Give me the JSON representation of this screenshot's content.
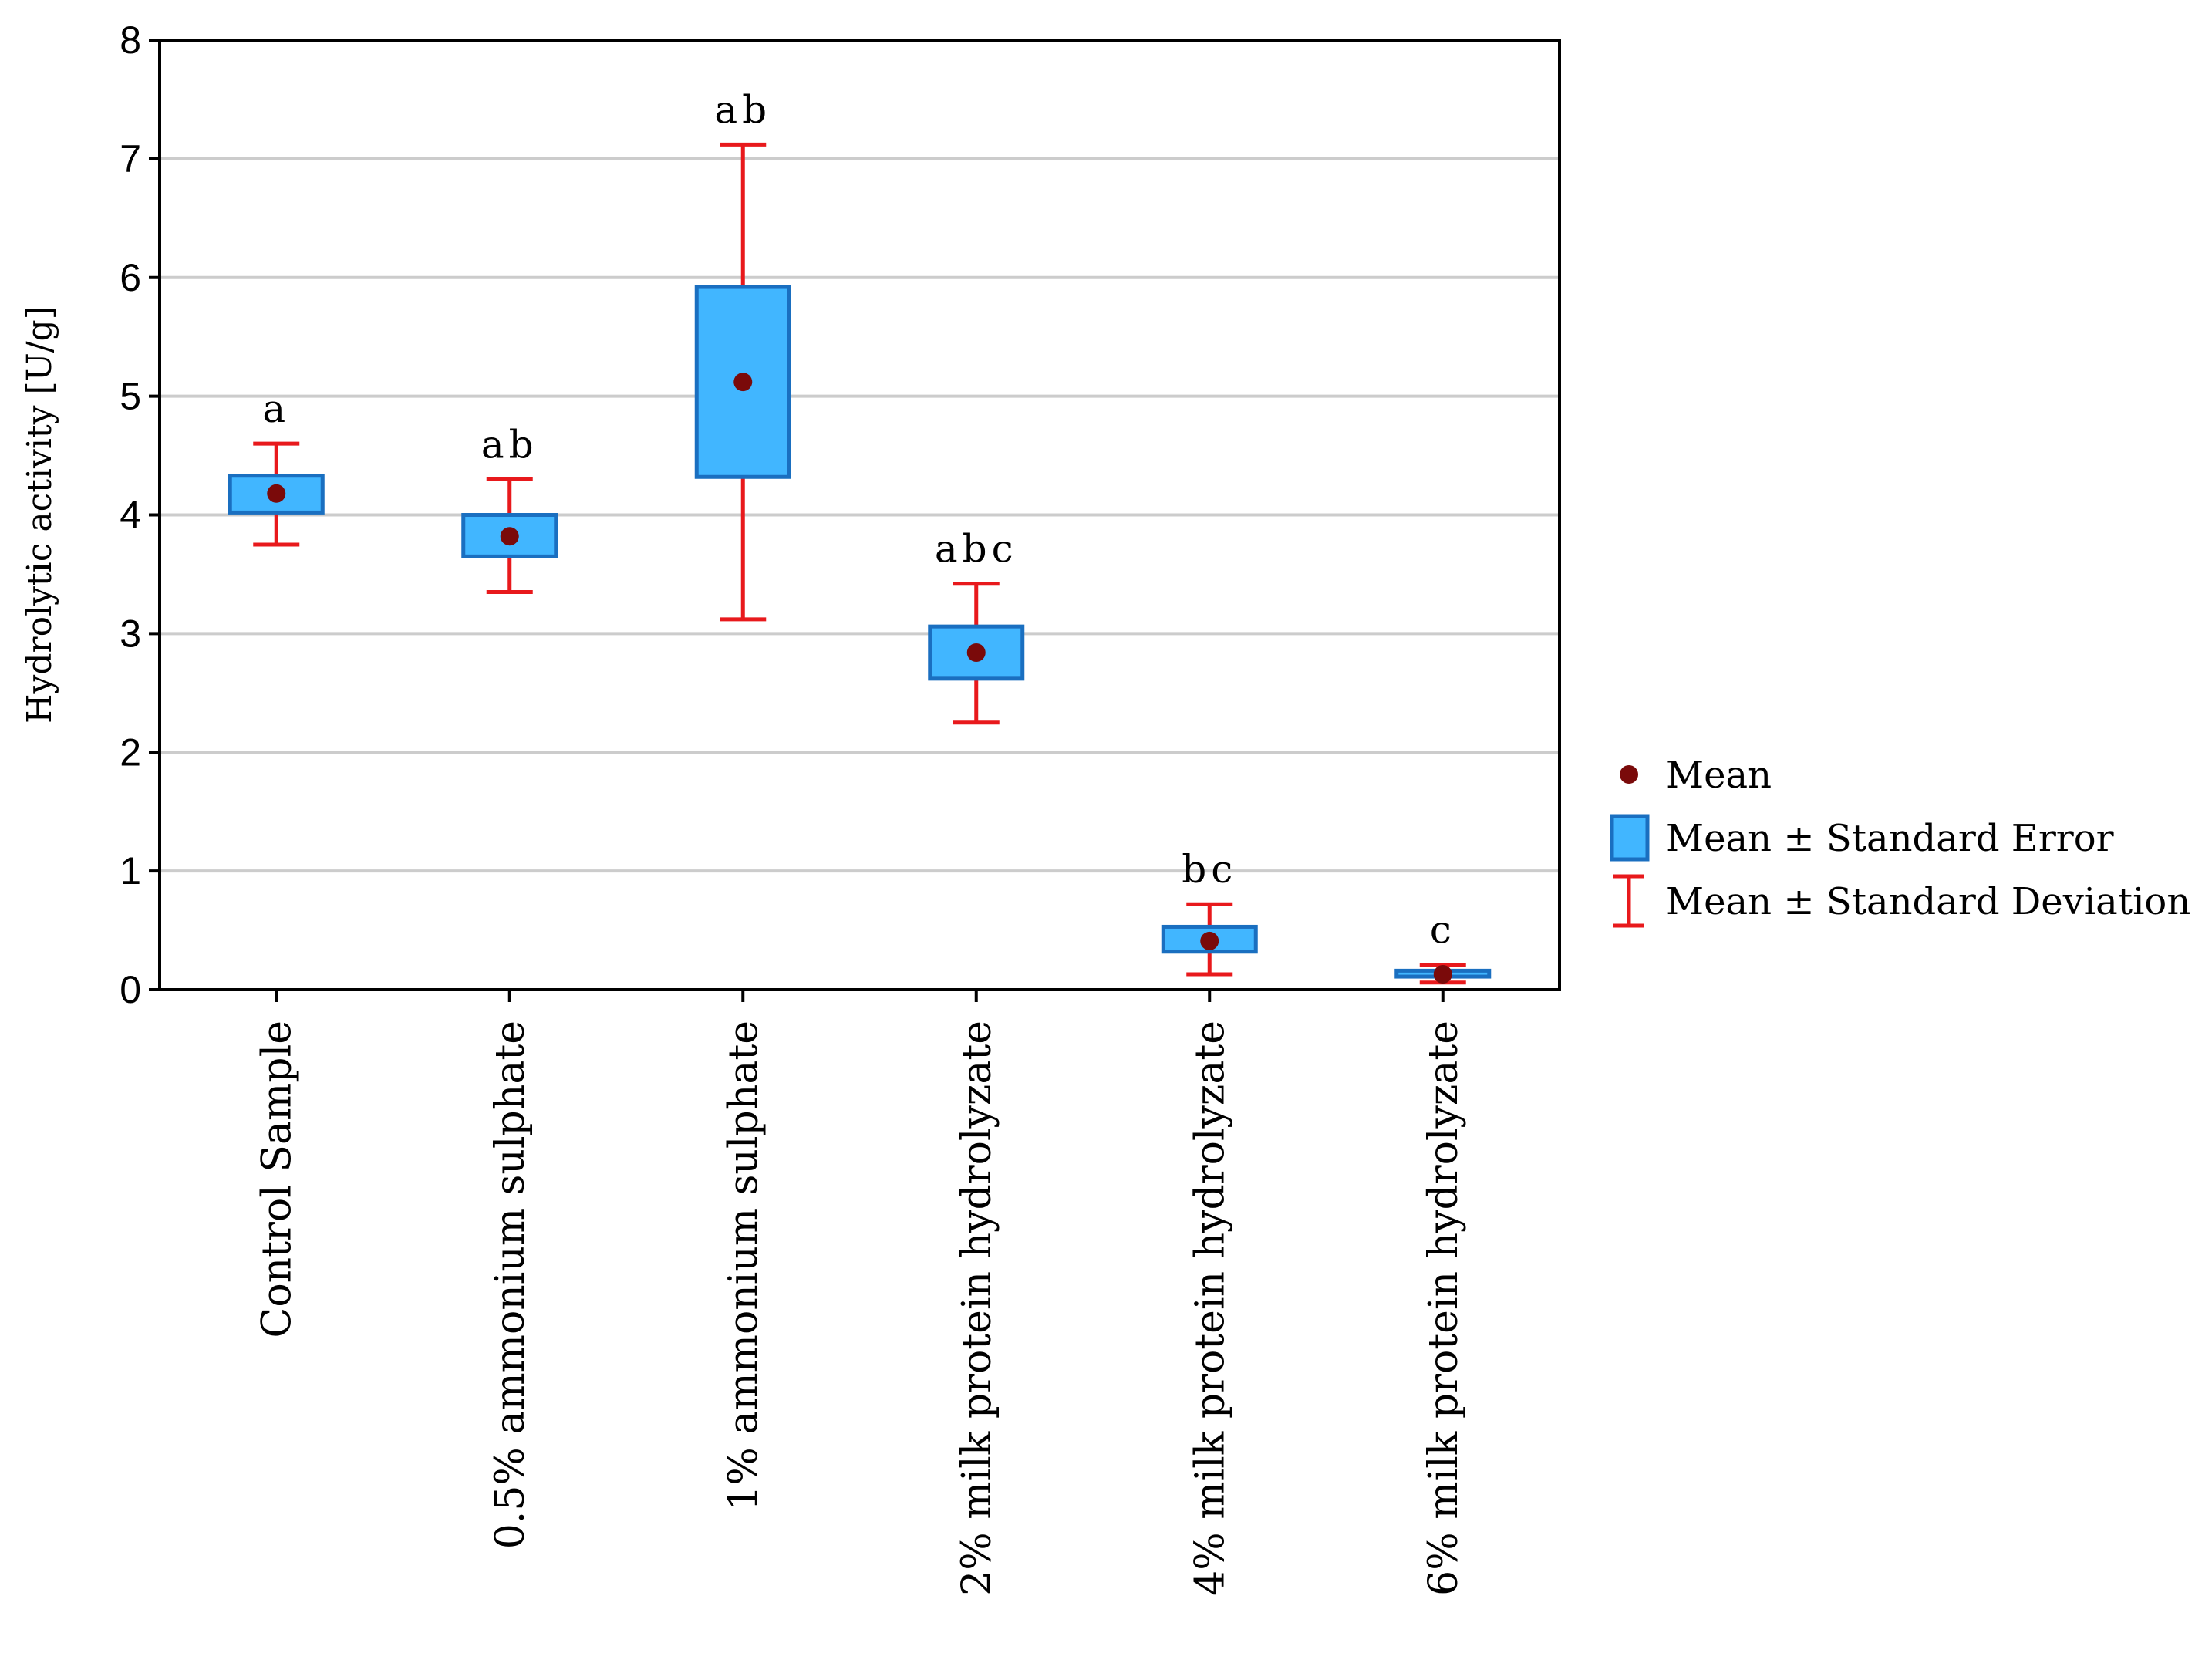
{
  "chart_data": {
    "type": "box",
    "ylabel": "Hydrolytic activity [U/g]",
    "xlabel": "",
    "ylim": [
      0,
      8
    ],
    "yticks": [
      0,
      1,
      2,
      3,
      4,
      5,
      6,
      7,
      8
    ],
    "grid": true,
    "categories": [
      "Control Sample",
      "0.5% ammonium sulphate",
      "1% ammonium sulphate",
      "2% milk protein hydrolyzate",
      "4% milk protein hydrolyzate",
      "6% milk protein hydrolyzate"
    ],
    "series": [
      {
        "name": "Mean",
        "values": [
          4.18,
          3.82,
          5.12,
          2.84,
          0.41,
          0.13
        ]
      },
      {
        "name": "Mean ± Standard Error",
        "low": [
          4.02,
          3.65,
          4.32,
          2.62,
          0.32,
          0.11
        ],
        "high": [
          4.33,
          4.0,
          5.92,
          3.06,
          0.53,
          0.16
        ]
      },
      {
        "name": "Mean ± Standard Deviation",
        "low": [
          3.75,
          3.35,
          3.12,
          2.25,
          0.13,
          0.06
        ],
        "high": [
          4.6,
          4.3,
          7.12,
          3.42,
          0.72,
          0.21
        ]
      }
    ],
    "group_letters": [
      "a",
      "ab",
      "ab",
      "abc",
      "bc",
      "c"
    ],
    "legend": {
      "position": "right",
      "items": [
        "Mean",
        "Mean ± Standard Error",
        "Mean ± Standard Deviation"
      ]
    },
    "colors": {
      "mean": "#7a0a0a",
      "box_fill": "#41b6ff",
      "box_stroke": "#1a6fc0",
      "whisker": "#e8191c",
      "grid": "#cccccc",
      "axis": "#000000"
    }
  }
}
